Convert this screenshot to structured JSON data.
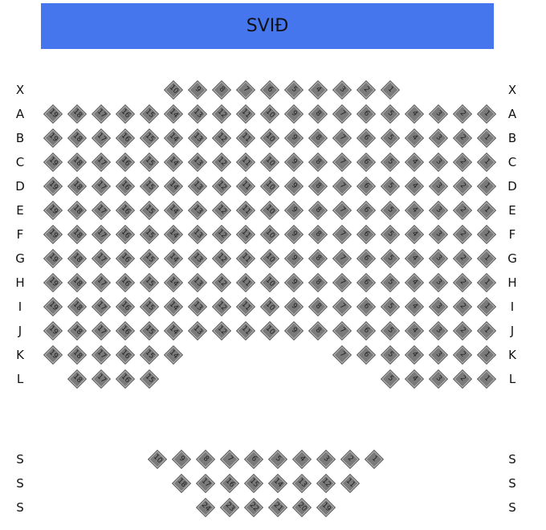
{
  "stage_label": "SVIÐ",
  "seat_color": "#7a7a7a",
  "stage_color": "#4676ee",
  "rows": [
    {
      "label": "X",
      "seats": [
        10,
        9,
        8,
        7,
        6,
        5,
        4,
        3,
        2,
        1
      ]
    },
    {
      "label": "A",
      "seats": [
        19,
        18,
        17,
        16,
        15,
        14,
        13,
        12,
        11,
        10,
        9,
        8,
        7,
        6,
        5,
        4,
        3,
        2,
        1
      ]
    },
    {
      "label": "B",
      "seats": [
        19,
        18,
        17,
        16,
        15,
        14,
        13,
        12,
        11,
        10,
        9,
        8,
        7,
        6,
        5,
        4,
        3,
        2,
        1
      ]
    },
    {
      "label": "C",
      "seats": [
        19,
        18,
        17,
        16,
        15,
        14,
        13,
        12,
        11,
        10,
        9,
        8,
        7,
        6,
        5,
        4,
        3,
        2,
        1
      ]
    },
    {
      "label": "D",
      "seats": [
        19,
        18,
        17,
        16,
        15,
        14,
        13,
        12,
        11,
        10,
        9,
        8,
        7,
        6,
        5,
        4,
        3,
        2,
        1
      ]
    },
    {
      "label": "E",
      "seats": [
        19,
        18,
        17,
        16,
        15,
        14,
        13,
        12,
        11,
        10,
        9,
        8,
        7,
        6,
        5,
        4,
        3,
        2,
        1
      ]
    },
    {
      "label": "F",
      "seats": [
        19,
        18,
        17,
        16,
        15,
        14,
        13,
        12,
        11,
        10,
        9,
        8,
        7,
        6,
        5,
        4,
        3,
        2,
        1
      ]
    },
    {
      "label": "G",
      "seats": [
        19,
        18,
        17,
        16,
        15,
        14,
        13,
        12,
        11,
        10,
        9,
        8,
        7,
        6,
        5,
        4,
        3,
        2,
        1
      ]
    },
    {
      "label": "H",
      "seats": [
        19,
        18,
        17,
        16,
        15,
        14,
        13,
        12,
        11,
        10,
        9,
        8,
        7,
        6,
        5,
        4,
        3,
        2,
        1
      ]
    },
    {
      "label": "I",
      "seats": [
        19,
        18,
        17,
        16,
        15,
        14,
        13,
        12,
        11,
        10,
        9,
        8,
        7,
        6,
        5,
        4,
        3,
        2,
        1
      ]
    },
    {
      "label": "J",
      "seats": [
        19,
        18,
        17,
        16,
        15,
        14,
        13,
        12,
        11,
        10,
        9,
        8,
        7,
        6,
        5,
        4,
        3,
        2,
        1
      ]
    },
    {
      "label": "K",
      "seats": [
        19,
        18,
        17,
        16,
        15,
        14,
        7,
        6,
        5,
        4,
        3,
        2,
        1
      ]
    },
    {
      "label": "L",
      "seats": [
        18,
        17,
        16,
        15,
        5,
        4,
        3,
        2,
        1
      ]
    },
    {
      "label": "S",
      "seats": [
        10,
        9,
        8,
        7,
        6,
        5,
        4,
        3,
        2,
        1
      ]
    },
    {
      "label": "S",
      "seats": [
        18,
        17,
        16,
        15,
        14,
        13,
        12,
        11
      ]
    },
    {
      "label": "S",
      "seats": [
        24,
        23,
        22,
        21,
        20,
        19
      ]
    }
  ]
}
